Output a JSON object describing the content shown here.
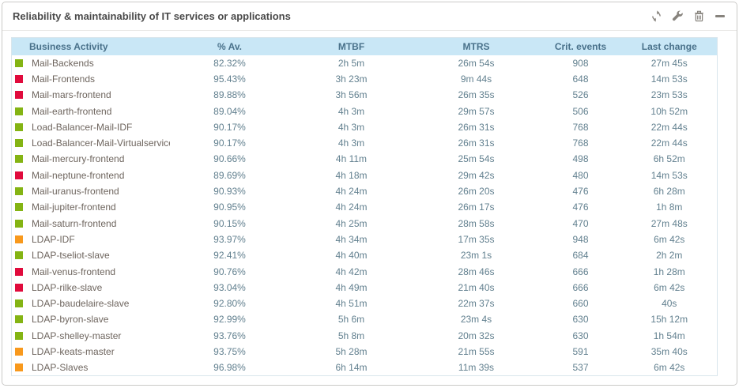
{
  "panel": {
    "title": "Reliability & maintainability of IT services or applications",
    "toolbar_icons": [
      "refresh-icon",
      "wrench-icon",
      "trash-icon",
      "minimize-icon"
    ]
  },
  "table": {
    "columns": [
      "Business Activity",
      "% Av.",
      "MTBF",
      "MTRS",
      "Crit. events",
      "Last change"
    ],
    "status_colors": {
      "green": "#84b414",
      "red": "#e00b3d",
      "orange": "#f8991d"
    },
    "header_bg": "#c9e7f6",
    "rows": [
      {
        "status": "green",
        "name": "Mail-Backends",
        "availability": "82.32%",
        "mtbf": "2h 5m",
        "mtrs": "26m 54s",
        "crit_events": "908",
        "last_change": "27m 45s"
      },
      {
        "status": "red",
        "name": "Mail-Frontends",
        "availability": "95.43%",
        "mtbf": "3h 23m",
        "mtrs": "9m 44s",
        "crit_events": "648",
        "last_change": "14m 53s"
      },
      {
        "status": "red",
        "name": "Mail-mars-frontend",
        "availability": "89.88%",
        "mtbf": "3h 56m",
        "mtrs": "26m 35s",
        "crit_events": "526",
        "last_change": "23m 53s"
      },
      {
        "status": "green",
        "name": "Mail-earth-frontend",
        "availability": "89.04%",
        "mtbf": "4h 3m",
        "mtrs": "29m 57s",
        "crit_events": "506",
        "last_change": "10h 52m"
      },
      {
        "status": "green",
        "name": "Load-Balancer-Mail-IDF",
        "availability": "90.17%",
        "mtbf": "4h 3m",
        "mtrs": "26m 31s",
        "crit_events": "768",
        "last_change": "22m 44s"
      },
      {
        "status": "green",
        "name": "Load-Balancer-Mail-Virtualservice",
        "availability": "90.17%",
        "mtbf": "4h 3m",
        "mtrs": "26m 31s",
        "crit_events": "768",
        "last_change": "22m 44s"
      },
      {
        "status": "green",
        "name": "Mail-mercury-frontend",
        "availability": "90.66%",
        "mtbf": "4h 11m",
        "mtrs": "25m 54s",
        "crit_events": "498",
        "last_change": "6h 52m"
      },
      {
        "status": "red",
        "name": "Mail-neptune-frontend",
        "availability": "89.69%",
        "mtbf": "4h 18m",
        "mtrs": "29m 42s",
        "crit_events": "480",
        "last_change": "14m 53s"
      },
      {
        "status": "green",
        "name": "Mail-uranus-frontend",
        "availability": "90.93%",
        "mtbf": "4h 24m",
        "mtrs": "26m 20s",
        "crit_events": "476",
        "last_change": "6h 28m"
      },
      {
        "status": "green",
        "name": "Mail-jupiter-frontend",
        "availability": "90.95%",
        "mtbf": "4h 24m",
        "mtrs": "26m 17s",
        "crit_events": "476",
        "last_change": "1h 8m"
      },
      {
        "status": "green",
        "name": "Mail-saturn-frontend",
        "availability": "90.15%",
        "mtbf": "4h 25m",
        "mtrs": "28m 58s",
        "crit_events": "470",
        "last_change": "27m 48s"
      },
      {
        "status": "orange",
        "name": "LDAP-IDF",
        "availability": "93.97%",
        "mtbf": "4h 34m",
        "mtrs": "17m 35s",
        "crit_events": "948",
        "last_change": "6m 42s"
      },
      {
        "status": "green",
        "name": "LDAP-tseliot-slave",
        "availability": "92.41%",
        "mtbf": "4h 40m",
        "mtrs": "23m 1s",
        "crit_events": "684",
        "last_change": "2h 2m"
      },
      {
        "status": "red",
        "name": "Mail-venus-frontend",
        "availability": "90.76%",
        "mtbf": "4h 42m",
        "mtrs": "28m 46s",
        "crit_events": "666",
        "last_change": "1h 28m"
      },
      {
        "status": "red",
        "name": "LDAP-rilke-slave",
        "availability": "93.04%",
        "mtbf": "4h 49m",
        "mtrs": "21m 40s",
        "crit_events": "666",
        "last_change": "6m 42s"
      },
      {
        "status": "green",
        "name": "LDAP-baudelaire-slave",
        "availability": "92.80%",
        "mtbf": "4h 51m",
        "mtrs": "22m 37s",
        "crit_events": "660",
        "last_change": "40s"
      },
      {
        "status": "green",
        "name": "LDAP-byron-slave",
        "availability": "92.99%",
        "mtbf": "5h 6m",
        "mtrs": "23m 4s",
        "crit_events": "630",
        "last_change": "15h 12m"
      },
      {
        "status": "green",
        "name": "LDAP-shelley-master",
        "availability": "93.76%",
        "mtbf": "5h 8m",
        "mtrs": "20m 32s",
        "crit_events": "630",
        "last_change": "1h 54m"
      },
      {
        "status": "orange",
        "name": "LDAP-keats-master",
        "availability": "93.75%",
        "mtbf": "5h 28m",
        "mtrs": "21m 55s",
        "crit_events": "591",
        "last_change": "35m 40s"
      },
      {
        "status": "orange",
        "name": "LDAP-Slaves",
        "availability": "96.98%",
        "mtbf": "6h 14m",
        "mtrs": "11m 39s",
        "crit_events": "537",
        "last_change": "6m 42s"
      }
    ]
  }
}
